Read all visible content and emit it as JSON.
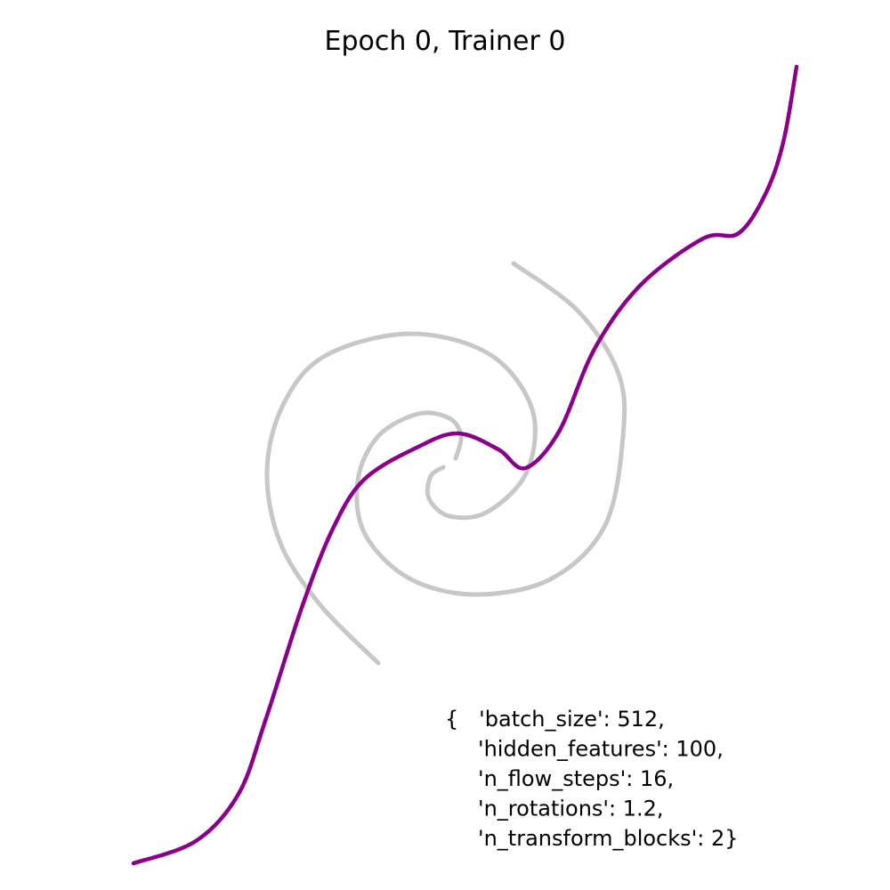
{
  "title": "Epoch 0, Trainer 0",
  "params": {
    "lines": [
      "{   'batch_size': 512,",
      "'hidden_features': 100,",
      "'n_flow_steps': 16,",
      "'n_rotations': 1.2,",
      "'n_transform_blocks': 2}"
    ]
  }
}
